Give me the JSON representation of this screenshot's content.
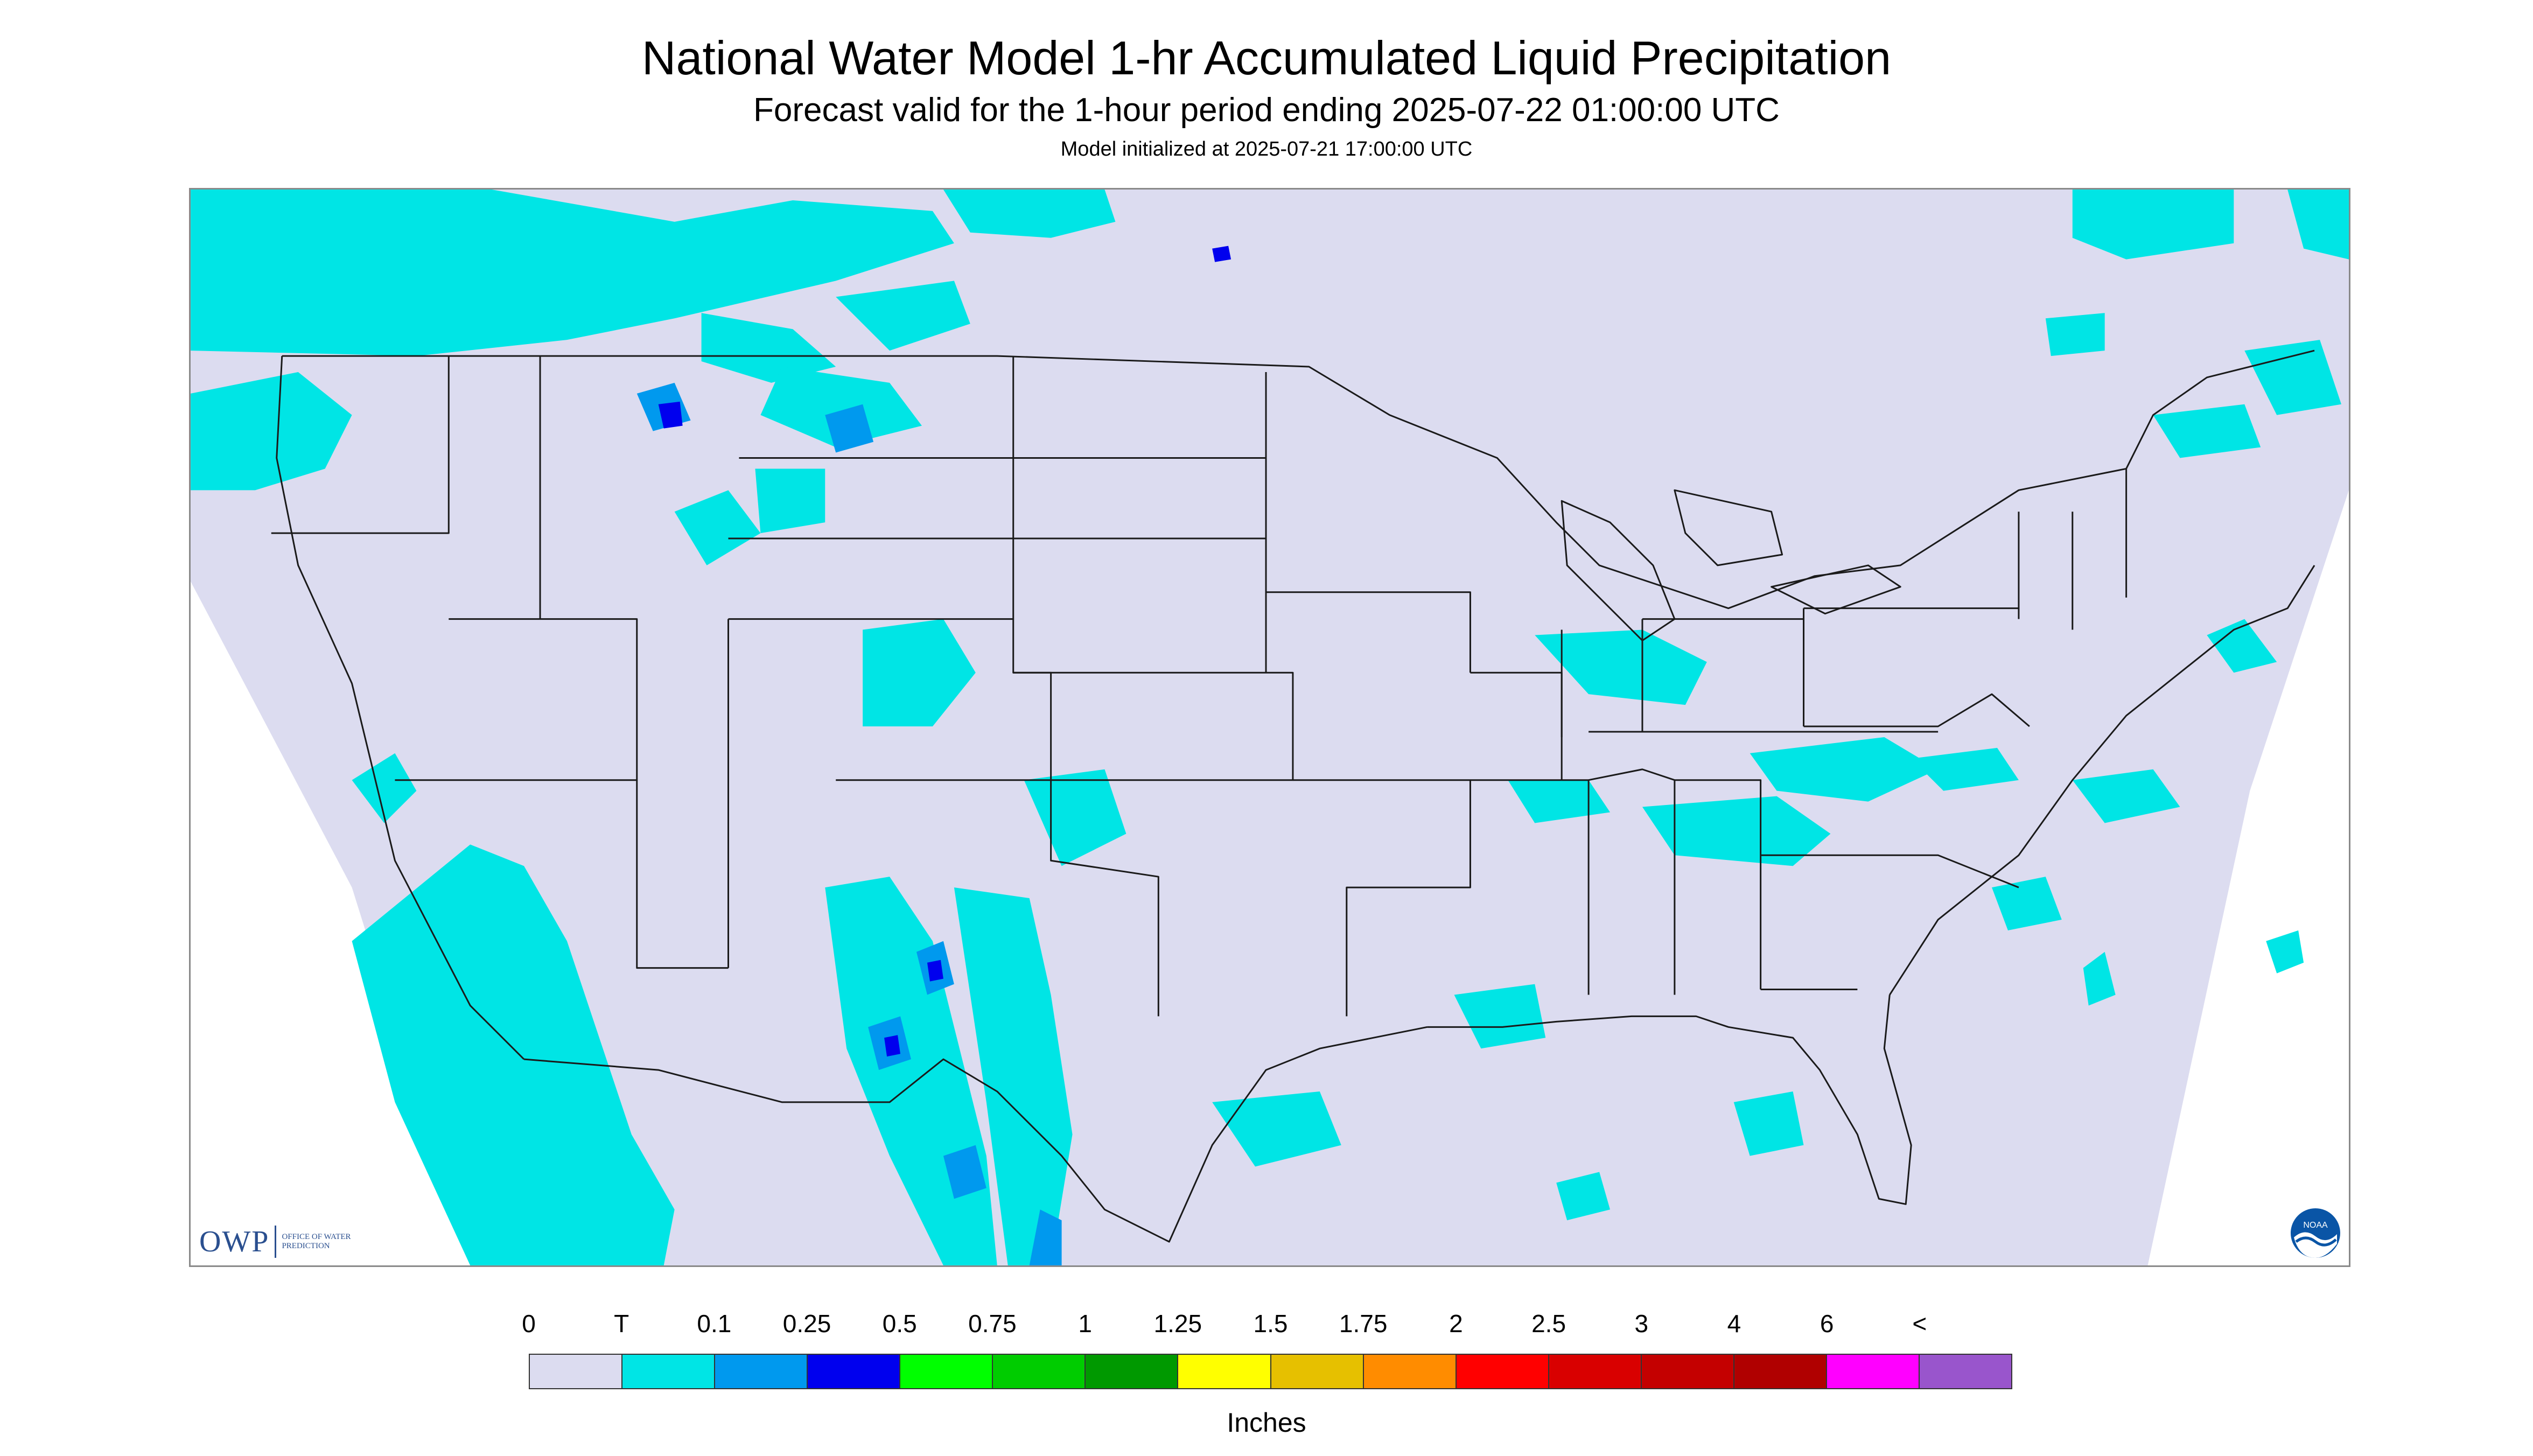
{
  "header": {
    "title": "National Water Model 1-hr Accumulated Liquid Precipitation",
    "subtitle": "Forecast valid for the 1-hour period ending 2025-07-22 01:00:00 UTC",
    "init": "Model initialized at 2025-07-21 17:00:00 UTC"
  },
  "logos": {
    "owp_text": "OWP",
    "owp_sub": "OFFICE OF WATER PREDICTION",
    "noaa": "NOAA"
  },
  "map": {
    "background_color": "#dcdcf0",
    "trace_color": "#00e5e5",
    "light_blue": "#0099ee",
    "blue": "#0000ee",
    "outline_color": "#1a1a1a"
  },
  "legend": {
    "labels": [
      "0",
      "T",
      "0.1",
      "0.25",
      "0.5",
      "0.75",
      "1",
      "1.25",
      "1.5",
      "1.75",
      "2",
      "2.5",
      "3",
      "4",
      "6",
      "<"
    ],
    "colors": [
      "#dcdcf0",
      "#00e5e5",
      "#0099ee",
      "#0000ee",
      "#00ff00",
      "#00cc00",
      "#009900",
      "#ffff00",
      "#e6c000",
      "#ff8c00",
      "#ff0000",
      "#d90000",
      "#c40000",
      "#b00000",
      "#ff00ff",
      "#9955cc"
    ],
    "units": "Inches"
  }
}
